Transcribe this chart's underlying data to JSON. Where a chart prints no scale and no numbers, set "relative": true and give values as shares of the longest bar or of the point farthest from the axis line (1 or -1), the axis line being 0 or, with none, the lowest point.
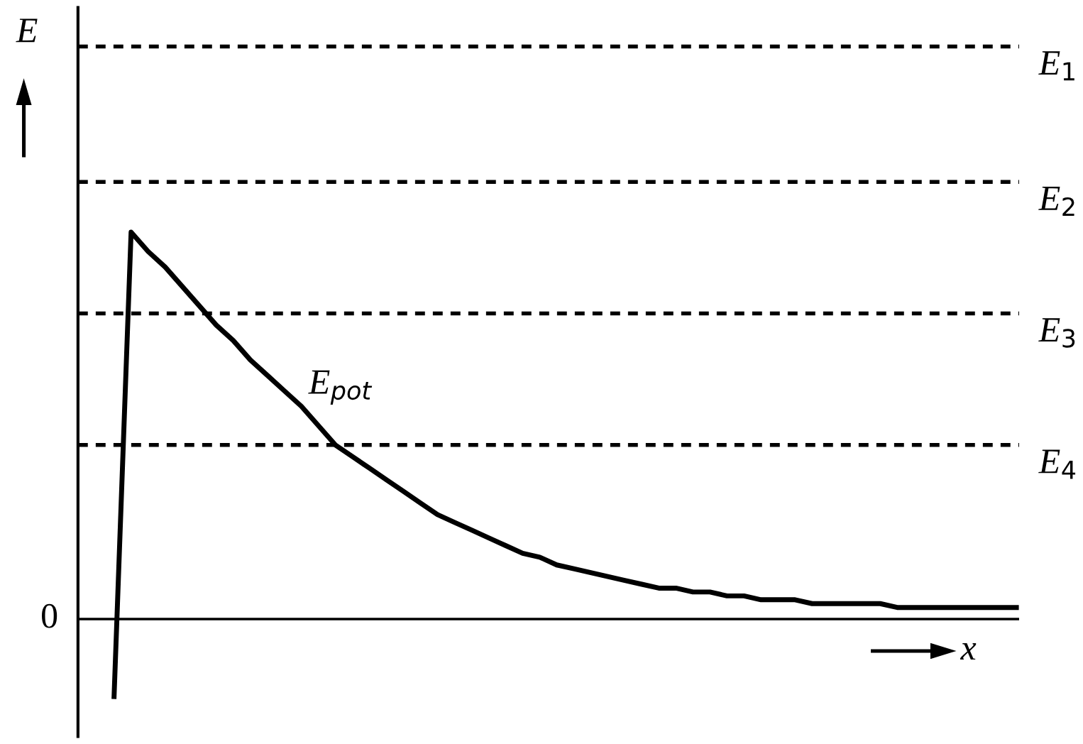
{
  "chart_data": {
    "type": "line",
    "relative": true,
    "xlabel": "x",
    "legend": false,
    "marker": "none",
    "line_style": "solid",
    "categories": [
      null,
      null,
      null,
      null,
      null,
      null,
      null,
      null,
      null,
      null,
      null,
      null,
      null,
      null,
      null,
      null,
      null,
      null,
      null,
      null,
      null,
      null,
      null,
      null,
      null,
      null,
      null,
      null,
      null,
      null,
      null,
      null,
      null,
      null,
      null,
      null,
      null,
      null,
      null,
      null,
      null,
      null,
      null,
      null,
      null,
      null,
      null,
      null,
      null,
      null,
      null,
      null,
      null,
      null
    ],
    "series": [
      {
        "color": "#000000",
        "values": [
          -0.2,
          1,
          0.95,
          0.91,
          0.86,
          0.81,
          0.76,
          0.72,
          0.67,
          0.63,
          0.59,
          0.55,
          0.5,
          0.45,
          0.42,
          0.39,
          0.36,
          0.33,
          0.3,
          0.27,
          0.25,
          0.23,
          0.21,
          0.19,
          0.17,
          0.16,
          0.14,
          0.13,
          0.12,
          0.11,
          0.1,
          0.09,
          0.08,
          0.08,
          0.07,
          0.07,
          0.06,
          0.06,
          0.05,
          0.05,
          0.05,
          0.04,
          0.04,
          0.04,
          0.04,
          0.04,
          0.03,
          0.03,
          0.03,
          0.03,
          0.03,
          0.03,
          0.03,
          0.03
        ]
      }
    ],
    "ref_lines": [
      {
        "axis": "y",
        "value": 1.48,
        "label": "E$_{1}$",
        "line_style": "dashed",
        "color": "#000000"
      },
      {
        "axis": "y",
        "value": 1.13,
        "label": "E$_{2}$",
        "line_style": "dashed",
        "color": "#000000"
      },
      {
        "axis": "y",
        "value": 0.79,
        "label": "E$_{3}$",
        "line_style": "dashed",
        "color": "#000000"
      },
      {
        "axis": "y",
        "value": 0.45,
        "label": "E$_{4}$",
        "line_style": "dashed",
        "color": "#000000"
      }
    ],
    "annotations": [
      "E$_{pot}$",
      "0",
      "E"
    ]
  }
}
